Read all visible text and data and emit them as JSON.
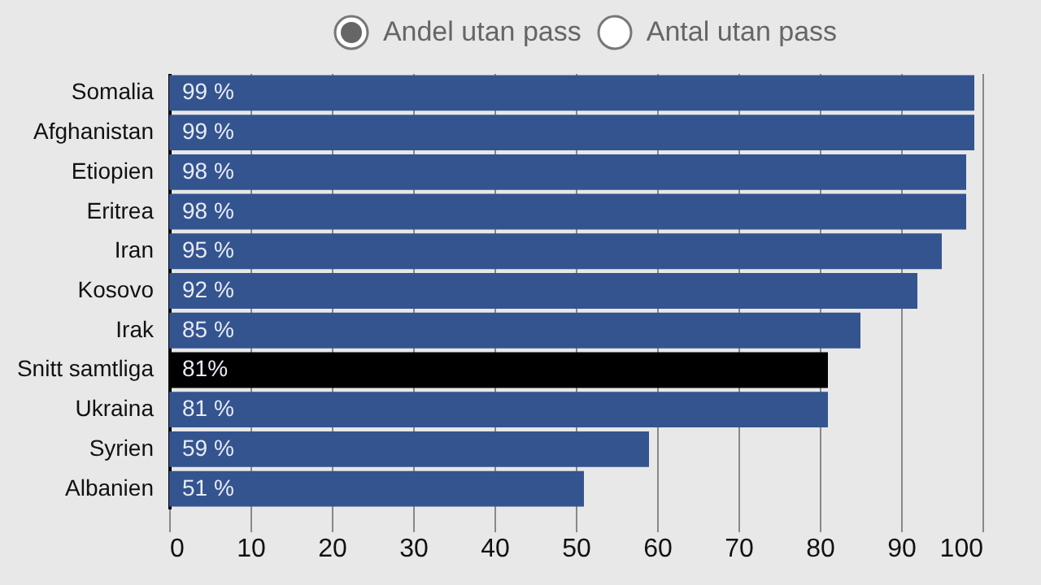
{
  "chart_data": {
    "type": "bar",
    "orientation": "horizontal",
    "categories": [
      "Somalia",
      "Afghanistan",
      "Etiopien",
      "Eritrea",
      "Iran",
      "Kosovo",
      "Irak",
      "Snitt samtliga",
      "Ukraina",
      "Syrien",
      "Albanien"
    ],
    "values": [
      99,
      99,
      98,
      98,
      95,
      92,
      85,
      81,
      81,
      59,
      51
    ],
    "value_labels": [
      "99 %",
      "99 %",
      "98 %",
      "98 %",
      "95 %",
      "92 %",
      "85 %",
      "81%",
      "81 %",
      "59 %",
      "51 %"
    ],
    "colors": [
      "#34548f",
      "#34548f",
      "#34548f",
      "#34548f",
      "#34548f",
      "#34548f",
      "#34548f",
      "#000000",
      "#34548f",
      "#34548f",
      "#34548f"
    ],
    "xlim": [
      0,
      100
    ],
    "xticks": [
      0,
      10,
      20,
      30,
      40,
      50,
      60,
      70,
      80,
      90,
      100
    ],
    "grid": "x",
    "legend": false,
    "annotations": [
      "Andel utan pass",
      "Antal utan pass"
    ]
  }
}
